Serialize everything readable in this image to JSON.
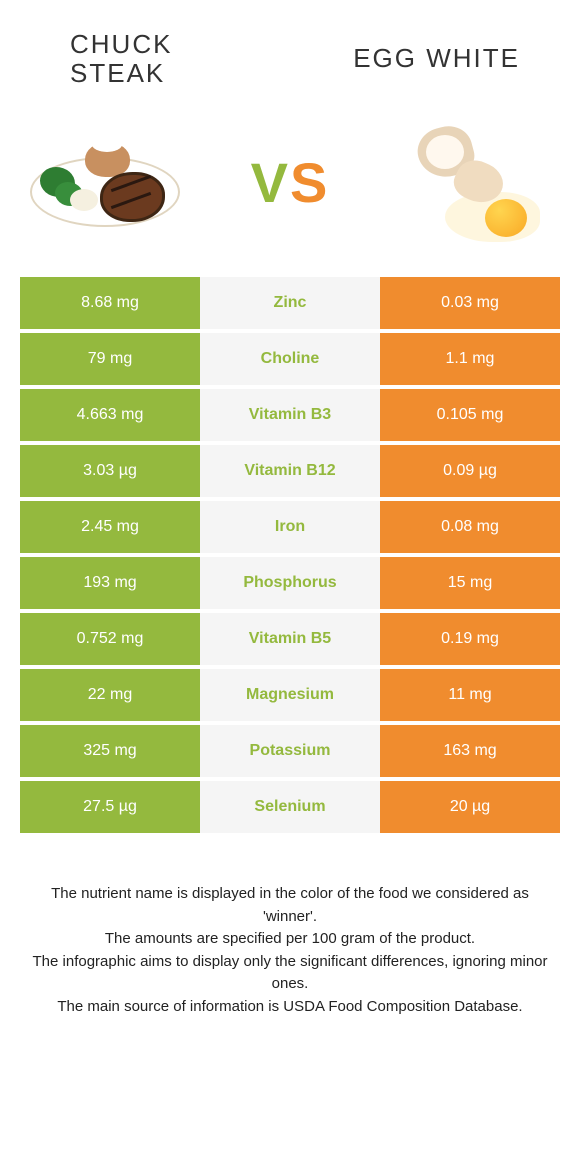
{
  "title_left": "CHUCK\nSTEAK",
  "title_right": "EGG WHITE",
  "vs": {
    "v": "V",
    "s": "S"
  },
  "colors": {
    "green": "#94b93e",
    "orange": "#f08c2e",
    "mid_bg": "#f5f5f5",
    "page_bg": "#ffffff",
    "text": "#222222"
  },
  "table": {
    "left_bg": "bg-green",
    "right_bg": "bg-orange",
    "rows": [
      {
        "left": "8.68 mg",
        "mid": "Zinc",
        "mid_color": "txt-green",
        "right": "0.03 mg"
      },
      {
        "left": "79 mg",
        "mid": "Choline",
        "mid_color": "txt-green",
        "right": "1.1 mg"
      },
      {
        "left": "4.663 mg",
        "mid": "Vitamin B3",
        "mid_color": "txt-green",
        "right": "0.105 mg"
      },
      {
        "left": "3.03 µg",
        "mid": "Vitamin B12",
        "mid_color": "txt-green",
        "right": "0.09 µg"
      },
      {
        "left": "2.45 mg",
        "mid": "Iron",
        "mid_color": "txt-green",
        "right": "0.08 mg"
      },
      {
        "left": "193 mg",
        "mid": "Phosphorus",
        "mid_color": "txt-green",
        "right": "15 mg"
      },
      {
        "left": "0.752 mg",
        "mid": "Vitamin B5",
        "mid_color": "txt-green",
        "right": "0.19 mg"
      },
      {
        "left": "22 mg",
        "mid": "Magnesium",
        "mid_color": "txt-green",
        "right": "11 mg"
      },
      {
        "left": "325 mg",
        "mid": "Potassium",
        "mid_color": "txt-green",
        "right": "163 mg"
      },
      {
        "left": "27.5 µg",
        "mid": "Selenium",
        "mid_color": "txt-green",
        "right": "20 µg"
      }
    ]
  },
  "notes": [
    "The nutrient name is displayed in the color of the food we considered as 'winner'.",
    "The amounts are specified per 100 gram of the product.",
    "The infographic aims to display only the significant differences, ignoring minor ones.",
    "The main source of information is USDA Food Composition Database."
  ]
}
